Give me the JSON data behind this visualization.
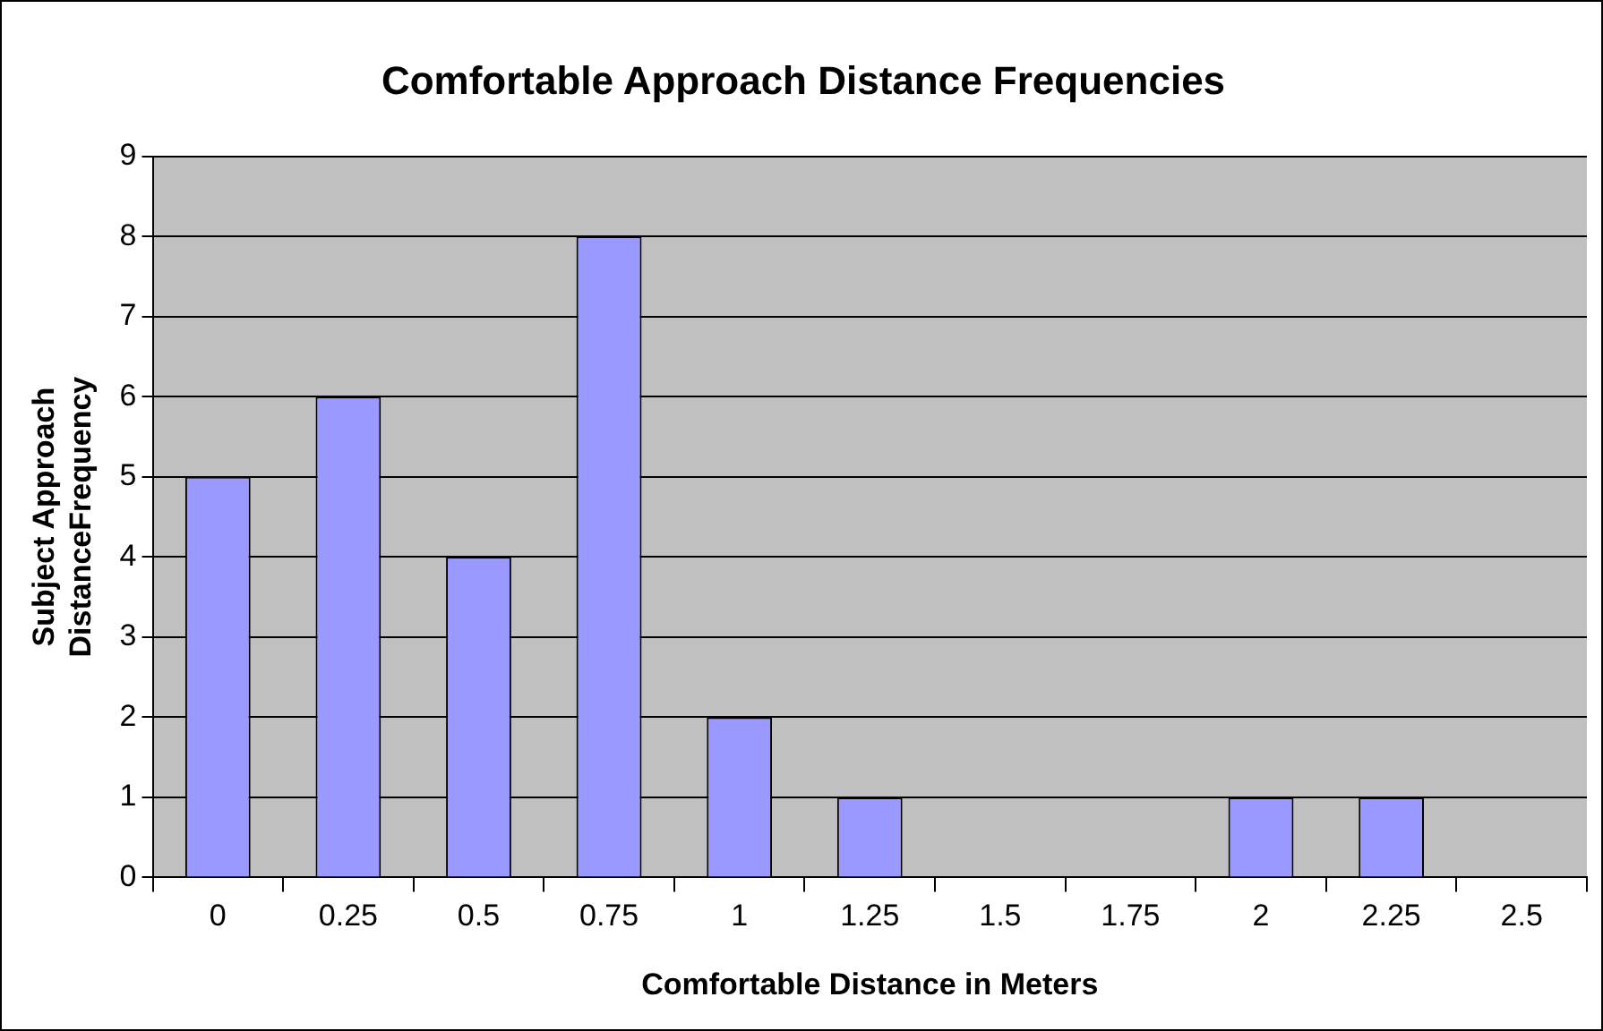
{
  "chart_data": {
    "type": "bar",
    "title": "Comfortable Approach Distance Frequencies",
    "xlabel": "Comfortable Distance in Meters",
    "ylabel": "Subject Approach DistanceFrequency",
    "categories": [
      "0",
      "0.25",
      "0.5",
      "0.75",
      "1",
      "1.25",
      "1.5",
      "1.75",
      "2",
      "2.25",
      "2.5"
    ],
    "values": [
      5,
      6,
      4,
      8,
      2,
      1,
      0,
      0,
      1,
      1,
      0
    ],
    "color": "#9999ff",
    "ylim": [
      0,
      9
    ],
    "yticks": [
      0,
      1,
      2,
      3,
      4,
      5,
      6,
      7,
      8,
      9
    ],
    "grid": "y",
    "legend": false
  }
}
